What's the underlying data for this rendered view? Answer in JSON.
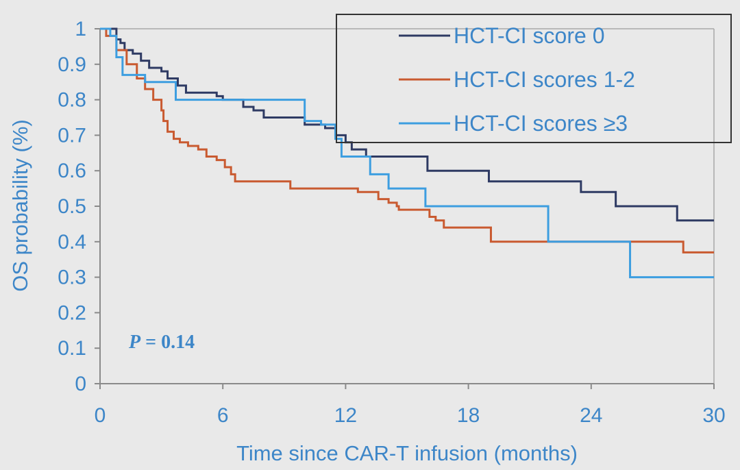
{
  "chart_data": {
    "type": "line",
    "subtype": "step (Kaplan-Meier)",
    "xlabel": "Time since CAR-T infusion (months)",
    "ylabel": "OS probability (%)",
    "xlim": [
      0,
      30
    ],
    "ylim": [
      0,
      1
    ],
    "x_ticks": [
      "0",
      "6",
      "12",
      "18",
      "24",
      "30"
    ],
    "y_ticks": [
      "0",
      "0.1",
      "0.2",
      "0.3",
      "0.4",
      "0.5",
      "0.6",
      "0.7",
      "0.8",
      "0.9",
      "1"
    ],
    "grid": false,
    "legend_position": "top-right",
    "annotation_italic": "P",
    "annotation_value": "= 0.14",
    "colors": {
      "axis": "#8a8a8a",
      "text": "#3d86c8",
      "legend_border": "#333333"
    },
    "series": [
      {
        "name": "HCT-CI score 0",
        "color": "#2e3a63",
        "points": [
          [
            0,
            1.0
          ],
          [
            0.6,
            1.0
          ],
          [
            0.8,
            0.97
          ],
          [
            1.0,
            0.96
          ],
          [
            1.2,
            0.94
          ],
          [
            1.6,
            0.93
          ],
          [
            2.0,
            0.91
          ],
          [
            2.4,
            0.89
          ],
          [
            3.0,
            0.88
          ],
          [
            3.3,
            0.86
          ],
          [
            3.8,
            0.84
          ],
          [
            4.2,
            0.82
          ],
          [
            5.7,
            0.81
          ],
          [
            6.0,
            0.8
          ],
          [
            7.0,
            0.78
          ],
          [
            7.5,
            0.77
          ],
          [
            8.0,
            0.75
          ],
          [
            10.0,
            0.73
          ],
          [
            11.0,
            0.72
          ],
          [
            11.5,
            0.7
          ],
          [
            12.0,
            0.68
          ],
          [
            12.3,
            0.66
          ],
          [
            13.0,
            0.64
          ],
          [
            16.0,
            0.6
          ],
          [
            19.0,
            0.57
          ],
          [
            23.5,
            0.54
          ],
          [
            25.2,
            0.5
          ],
          [
            28.2,
            0.46
          ],
          [
            30.0,
            0.46
          ]
        ]
      },
      {
        "name": "HCT-CI scores 1-2",
        "color": "#c95a30",
        "points": [
          [
            0,
            1.0
          ],
          [
            0.3,
            0.98
          ],
          [
            0.8,
            0.94
          ],
          [
            1.3,
            0.9
          ],
          [
            1.8,
            0.86
          ],
          [
            2.2,
            0.83
          ],
          [
            2.6,
            0.8
          ],
          [
            3.0,
            0.77
          ],
          [
            3.1,
            0.74
          ],
          [
            3.3,
            0.71
          ],
          [
            3.6,
            0.69
          ],
          [
            3.9,
            0.68
          ],
          [
            4.3,
            0.67
          ],
          [
            4.8,
            0.66
          ],
          [
            5.2,
            0.64
          ],
          [
            5.7,
            0.63
          ],
          [
            6.1,
            0.61
          ],
          [
            6.4,
            0.59
          ],
          [
            6.6,
            0.57
          ],
          [
            9.3,
            0.55
          ],
          [
            12.6,
            0.54
          ],
          [
            13.6,
            0.52
          ],
          [
            14.1,
            0.51
          ],
          [
            14.5,
            0.5
          ],
          [
            14.6,
            0.49
          ],
          [
            16.1,
            0.47
          ],
          [
            16.4,
            0.46
          ],
          [
            16.8,
            0.44
          ],
          [
            19.1,
            0.4
          ],
          [
            28.5,
            0.37
          ],
          [
            30.0,
            0.37
          ]
        ]
      },
      {
        "name": "HCT-CI scores ≥3",
        "color": "#3d9ee0",
        "points": [
          [
            0,
            1.0
          ],
          [
            0.5,
            0.98
          ],
          [
            0.8,
            0.92
          ],
          [
            1.1,
            0.87
          ],
          [
            2.2,
            0.85
          ],
          [
            3.7,
            0.8
          ],
          [
            10.0,
            0.74
          ],
          [
            10.8,
            0.73
          ],
          [
            11.5,
            0.69
          ],
          [
            11.8,
            0.64
          ],
          [
            13.2,
            0.59
          ],
          [
            14.1,
            0.55
          ],
          [
            15.9,
            0.5
          ],
          [
            21.9,
            0.4
          ],
          [
            25.9,
            0.3
          ],
          [
            30.0,
            0.3
          ]
        ]
      }
    ]
  }
}
